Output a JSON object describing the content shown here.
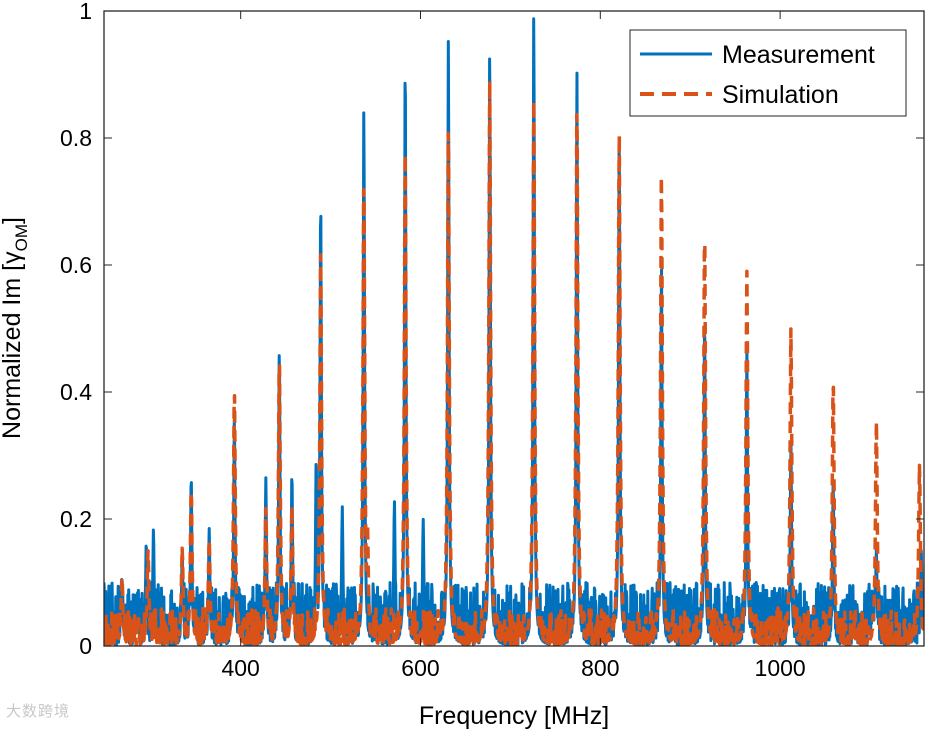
{
  "chart_data": {
    "type": "line",
    "xlabel": "Frequency [MHz]",
    "ylabel": "Normalized Im [γ",
    "ylabel_sub": "OM",
    "ylabel_close": "]",
    "xlim": [
      248,
      1160
    ],
    "ylim": [
      0,
      1
    ],
    "xticks": [
      400,
      600,
      800,
      1000
    ],
    "xtick_labels": [
      "400",
      "600",
      "800",
      "1000"
    ],
    "yticks": [
      0,
      0.2,
      0.4,
      0.6,
      0.8,
      1
    ],
    "ytick_labels": [
      "0",
      "0.2",
      "0.4",
      "0.6",
      "0.8",
      "1"
    ],
    "grid": false,
    "legend_position": "top-right",
    "series": [
      {
        "name": "Measurement",
        "color": "#0072BD",
        "style": "solid",
        "noise_floor": 0.1,
        "peaks": [
          {
            "x": 248,
            "y": 0.1
          },
          {
            "x": 268,
            "y": 0.11
          },
          {
            "x": 295,
            "y": 0.165
          },
          {
            "x": 303,
            "y": 0.185
          },
          {
            "x": 335,
            "y": 0.15
          },
          {
            "x": 345,
            "y": 0.27
          },
          {
            "x": 365,
            "y": 0.185
          },
          {
            "x": 393,
            "y": 0.36
          },
          {
            "x": 428,
            "y": 0.265
          },
          {
            "x": 443,
            "y": 0.47
          },
          {
            "x": 457,
            "y": 0.275
          },
          {
            "x": 484,
            "y": 0.3
          },
          {
            "x": 489,
            "y": 0.71
          },
          {
            "x": 513,
            "y": 0.22
          },
          {
            "x": 537,
            "y": 0.85
          },
          {
            "x": 571,
            "y": 0.23
          },
          {
            "x": 583,
            "y": 0.93
          },
          {
            "x": 603,
            "y": 0.2
          },
          {
            "x": 631,
            "y": 0.955
          },
          {
            "x": 677,
            "y": 0.95
          },
          {
            "x": 726,
            "y": 1.0
          },
          {
            "x": 774,
            "y": 0.905
          },
          {
            "x": 821,
            "y": 0.815
          },
          {
            "x": 868,
            "y": 0.6
          },
          {
            "x": 916,
            "y": 0.52
          },
          {
            "x": 963,
            "y": 0.47
          },
          {
            "x": 1012,
            "y": 0.32
          },
          {
            "x": 1059,
            "y": 0.26
          },
          {
            "x": 1107,
            "y": 0.155
          },
          {
            "x": 1157,
            "y": 0.15
          }
        ]
      },
      {
        "name": "Simulation",
        "color": "#D95319",
        "style": "dashed",
        "noise_floor": 0.06,
        "peaks": [
          {
            "x": 268,
            "y": 0.11
          },
          {
            "x": 297,
            "y": 0.15
          },
          {
            "x": 335,
            "y": 0.155
          },
          {
            "x": 345,
            "y": 0.25
          },
          {
            "x": 365,
            "y": 0.17
          },
          {
            "x": 393,
            "y": 0.405
          },
          {
            "x": 428,
            "y": 0.22
          },
          {
            "x": 443,
            "y": 0.46
          },
          {
            "x": 457,
            "y": 0.22
          },
          {
            "x": 489,
            "y": 0.62
          },
          {
            "x": 537,
            "y": 0.75
          },
          {
            "x": 541,
            "y": 0.195
          },
          {
            "x": 583,
            "y": 0.775
          },
          {
            "x": 631,
            "y": 0.83
          },
          {
            "x": 677,
            "y": 0.89
          },
          {
            "x": 726,
            "y": 0.86
          },
          {
            "x": 774,
            "y": 0.86
          },
          {
            "x": 821,
            "y": 0.81
          },
          {
            "x": 868,
            "y": 0.75
          },
          {
            "x": 916,
            "y": 0.66
          },
          {
            "x": 963,
            "y": 0.59
          },
          {
            "x": 1012,
            "y": 0.5
          },
          {
            "x": 1059,
            "y": 0.425
          },
          {
            "x": 1107,
            "y": 0.355
          },
          {
            "x": 1155,
            "y": 0.285
          }
        ]
      }
    ]
  },
  "watermark": "大数跨境"
}
